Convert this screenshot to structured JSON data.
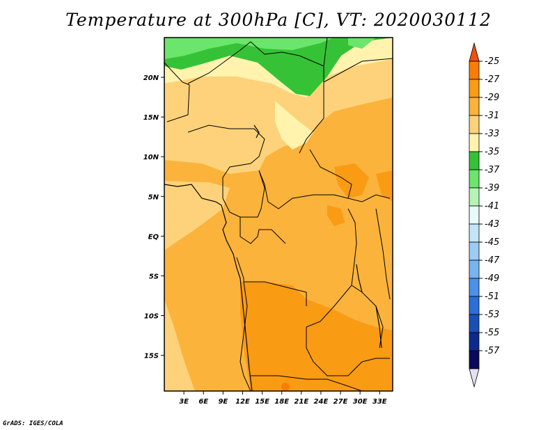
{
  "title": "Temperature at 300hPa [C], VT: 2020030112",
  "credit": "GrADS: IGES/COLA",
  "map": {
    "lon_ticks": [
      "3E",
      "6E",
      "9E",
      "12E",
      "15E",
      "18E",
      "21E",
      "24E",
      "27E",
      "30E",
      "33E"
    ],
    "lat_ticks": [
      "20N",
      "15N",
      "10N",
      "5N",
      "EQ",
      "5S",
      "10S",
      "15S"
    ],
    "lon_range": [
      0,
      35
    ],
    "lat_range": [
      -19.5,
      25
    ],
    "colors": {
      "frame": "#000000",
      "border": "#000000"
    }
  },
  "colorbar": {
    "labels": [
      "-25",
      "-27",
      "-29",
      "-31",
      "-33",
      "-35",
      "-37",
      "-39",
      "-41",
      "-43",
      "-45",
      "-47",
      "-49",
      "-51",
      "-53",
      "-55",
      "-57"
    ],
    "colors": [
      "#f0500a",
      "#fa7d00",
      "#fa9b14",
      "#fbb33c",
      "#fdd27a",
      "#fff3ae",
      "#36c236",
      "#6be56b",
      "#b4f5b4",
      "#e8fafa",
      "#c2e6f8",
      "#9ccbf5",
      "#78b4f0",
      "#4b91ea",
      "#2b6fd8",
      "#1a4fb4",
      "#0d2a8c",
      "#0a0a5a",
      "#e2e2f2"
    ]
  }
}
